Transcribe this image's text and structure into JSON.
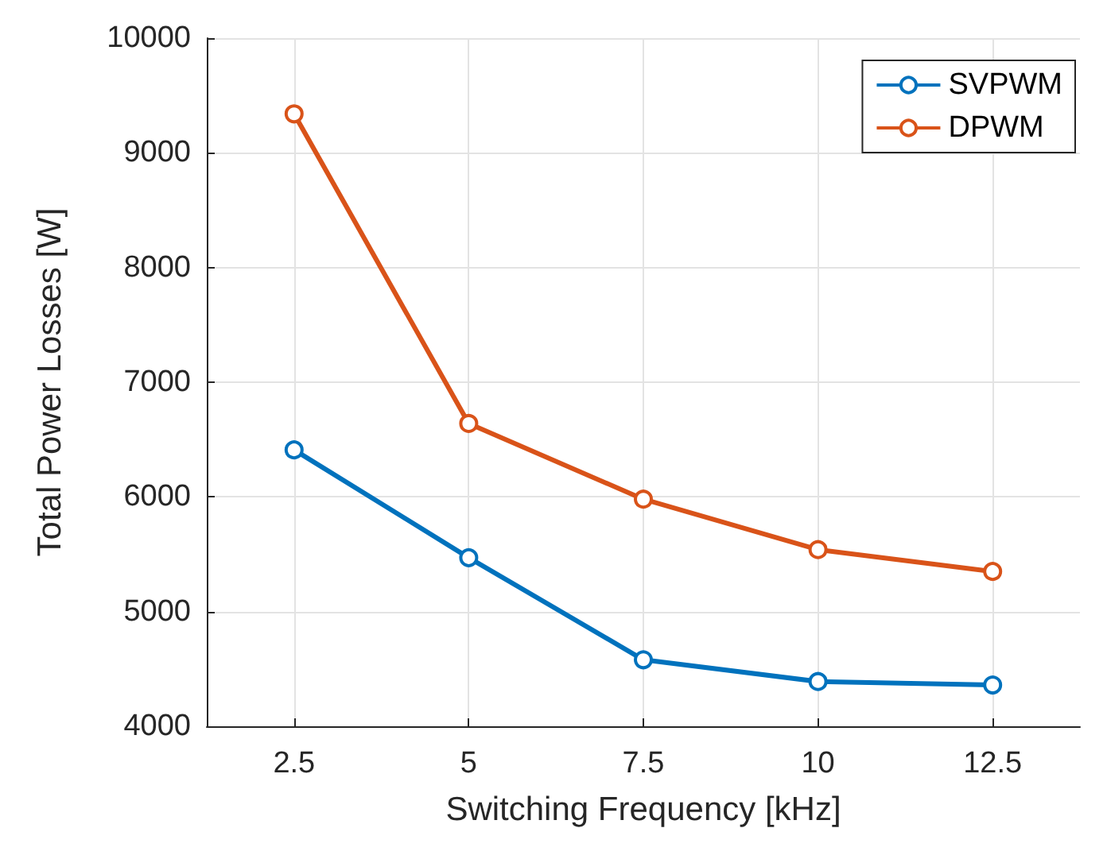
{
  "chart_data": {
    "type": "line",
    "xlabel": "Switching Frequency [kHz]",
    "ylabel": "Total Power Losses [W]",
    "x": [
      2.5,
      5,
      7.5,
      10,
      12.5
    ],
    "series": [
      {
        "name": "SVPWM",
        "color": "#0072bd",
        "values": [
          6410,
          5470,
          4580,
          4390,
          4360
        ]
      },
      {
        "name": "DPWM",
        "color": "#d95319",
        "values": [
          9340,
          6640,
          5980,
          5540,
          5350
        ]
      }
    ],
    "xlim": [
      1.25,
      13.75
    ],
    "xticks": [
      2.5,
      5,
      7.5,
      10,
      12.5
    ],
    "ylim": [
      4000,
      10000
    ],
    "yticks": [
      4000,
      5000,
      6000,
      7000,
      8000,
      9000,
      10000
    ],
    "grid": true,
    "legend": "top right",
    "marker": "circle",
    "line_style": "solid"
  }
}
